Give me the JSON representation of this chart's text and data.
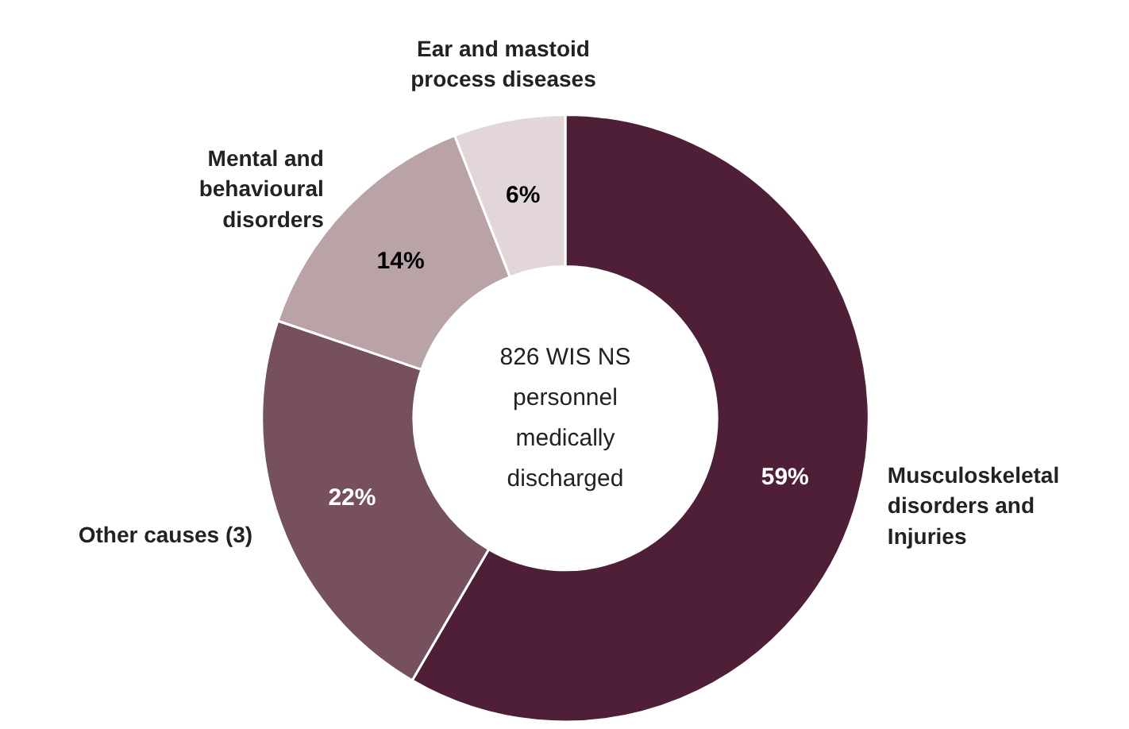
{
  "chart_data": {
    "type": "donut",
    "categories": [
      "Musculoskeletal disorders and Injuries",
      "Other causes (3)",
      "Mental and behavioural disorders",
      "Ear and mastoid process diseases"
    ],
    "values": [
      59,
      22,
      14,
      6
    ],
    "value_labels": [
      "59%",
      "22%",
      "14%",
      "6%"
    ],
    "colors": [
      "#4f1f38",
      "#76505e",
      "#b9a3a7",
      "#e3d6d8"
    ],
    "annotations": [
      "826 WIS NS personnel medically discharged"
    ]
  }
}
